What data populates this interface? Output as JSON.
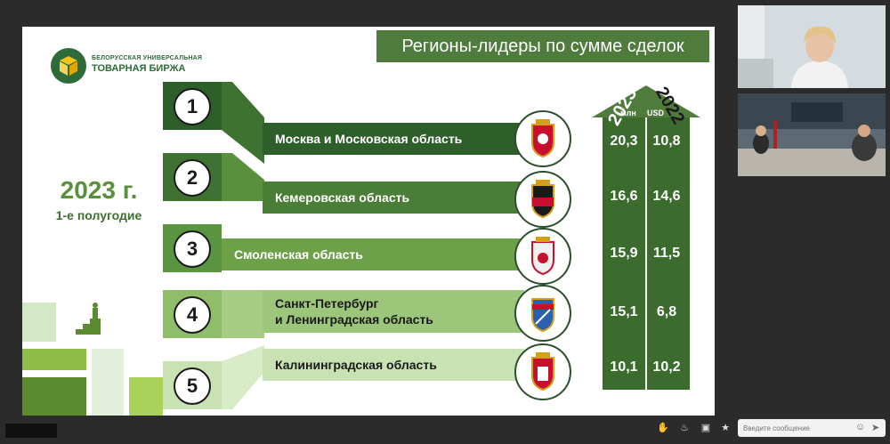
{
  "slide": {
    "title": "Регионы-лидеры по сумме сделок",
    "logo_line1": "БЕЛОРУССКАЯ УНИВЕРСАЛЬНАЯ",
    "logo_line2": "ТОВАРНАЯ БИРЖА",
    "year": "2023 г.",
    "half": "1-е полугодие",
    "col_2023": "2023",
    "col_2022": "2022",
    "unit_mln": "млн",
    "unit_usd": "USD",
    "regions": [
      {
        "rank": "1",
        "name": "Москва и Московская область",
        "v2023": "20,3",
        "v2022": "10,8"
      },
      {
        "rank": "2",
        "name": "Кемеровская область",
        "v2023": "16,6",
        "v2022": "14,6"
      },
      {
        "rank": "3",
        "name": "Смоленская область",
        "v2023": "15,9",
        "v2022": "11,5"
      },
      {
        "rank": "4",
        "name_line1": "Санкт-Петербург",
        "name_line2": "и Ленинградская область",
        "v2023": "15,1",
        "v2022": "6,8"
      },
      {
        "rank": "5",
        "name": "Калининградская область",
        "v2023": "10,1",
        "v2022": "10,2"
      }
    ]
  },
  "chat": {
    "placeholder": "Введите сообщение"
  },
  "colors": {
    "dark_green": "#2e5e2a",
    "mid_green": "#4f7c3c",
    "light_green": "#8fbd6a",
    "pale_green": "#c9e2b4",
    "accent": "#5a8f3e"
  }
}
